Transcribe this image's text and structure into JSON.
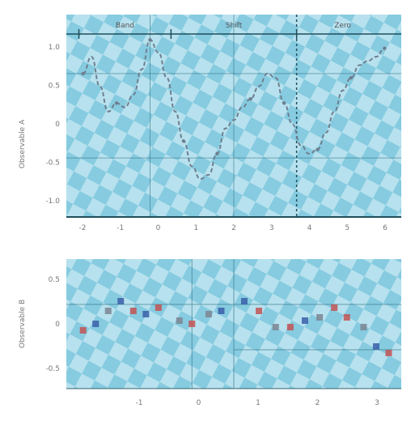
{
  "colors": {
    "background": "#ffffff",
    "panel_fill_a": "#b7e1ee",
    "panel_fill_b": "#86cbe0",
    "axis": "#1f4f5c",
    "grid": "#2f6f80",
    "curve": "#6f7f8f",
    "marker_blue": "#3a5fa8",
    "marker_red": "#c25454",
    "marker_gray": "#7d8592"
  },
  "chart_data": [
    {
      "type": "line",
      "title": "",
      "xlabel": "",
      "ylabel": "Observable A",
      "xlim": [
        -4,
        4
      ],
      "ylim": [
        -1.2,
        1.2
      ],
      "grid": true,
      "legend": "none",
      "x_tick_labels": [
        "-2",
        "-1",
        "0",
        "1",
        "2",
        "3",
        "4",
        "5",
        "6"
      ],
      "y_tick_labels": [
        "1.0",
        "0.5",
        "0",
        "-0.5",
        "-1.0"
      ],
      "annotations": {
        "top_band": [
          "Band",
          "Shift",
          "Zero"
        ],
        "dashed_marker_x": 1.5
      },
      "series": [
        {
          "x": [
            -3.6,
            -3.4,
            -3.2,
            -3.0,
            -2.8,
            -2.6,
            -2.4,
            -2.2,
            -2.0,
            -1.8,
            -1.6,
            -1.4,
            -1.2,
            -1.0,
            -0.8,
            -0.6,
            -0.4,
            -0.2,
            0.0,
            0.2,
            0.4,
            0.6,
            0.8,
            1.0,
            1.2,
            1.4,
            1.6,
            1.8,
            2.0,
            2.2,
            2.4,
            2.6,
            2.8,
            3.0,
            3.2,
            3.4,
            3.6
          ],
          "y": [
            0.5,
            0.7,
            0.35,
            0.05,
            0.15,
            0.1,
            0.25,
            0.55,
            0.9,
            0.75,
            0.45,
            0.05,
            -0.3,
            -0.6,
            -0.75,
            -0.7,
            -0.45,
            -0.15,
            -0.05,
            0.1,
            0.2,
            0.35,
            0.5,
            0.45,
            0.15,
            -0.1,
            -0.35,
            -0.45,
            -0.4,
            -0.2,
            0.05,
            0.3,
            0.45,
            0.6,
            0.65,
            0.7,
            0.8
          ]
        }
      ]
    },
    {
      "type": "scatter",
      "title": "",
      "xlabel": "",
      "ylabel": "Observable B",
      "xlim": [
        -4,
        4
      ],
      "ylim": [
        -1.0,
        1.0
      ],
      "grid": true,
      "legend": "none",
      "x_tick_labels": [
        "-1",
        "0",
        "1",
        "2",
        "3"
      ],
      "y_tick_labels": [
        "0.5",
        "0",
        "-0.5"
      ],
      "series": [
        {
          "points": [
            {
              "x": -3.6,
              "y": -0.1,
              "color": "red"
            },
            {
              "x": -3.3,
              "y": 0.0,
              "color": "blue"
            },
            {
              "x": -3.0,
              "y": 0.2,
              "color": "gray"
            },
            {
              "x": -2.7,
              "y": 0.35,
              "color": "blue"
            },
            {
              "x": -2.4,
              "y": 0.2,
              "color": "red"
            },
            {
              "x": -2.1,
              "y": 0.15,
              "color": "blue"
            },
            {
              "x": -1.8,
              "y": 0.25,
              "color": "red"
            },
            {
              "x": -1.3,
              "y": 0.05,
              "color": "gray"
            },
            {
              "x": -1.0,
              "y": 0.0,
              "color": "red"
            },
            {
              "x": -0.6,
              "y": 0.15,
              "color": "gray"
            },
            {
              "x": -0.3,
              "y": 0.2,
              "color": "blue"
            },
            {
              "x": 0.25,
              "y": 0.35,
              "color": "blue"
            },
            {
              "x": 0.6,
              "y": 0.2,
              "color": "red"
            },
            {
              "x": 1.0,
              "y": -0.05,
              "color": "gray"
            },
            {
              "x": 1.35,
              "y": -0.05,
              "color": "red"
            },
            {
              "x": 1.7,
              "y": 0.05,
              "color": "blue"
            },
            {
              "x": 2.05,
              "y": 0.1,
              "color": "gray"
            },
            {
              "x": 2.4,
              "y": 0.25,
              "color": "red"
            },
            {
              "x": 2.7,
              "y": 0.1,
              "color": "red"
            },
            {
              "x": 3.1,
              "y": -0.05,
              "color": "gray"
            },
            {
              "x": 3.4,
              "y": -0.35,
              "color": "blue"
            },
            {
              "x": 3.7,
              "y": -0.45,
              "color": "red"
            }
          ]
        }
      ]
    }
  ]
}
